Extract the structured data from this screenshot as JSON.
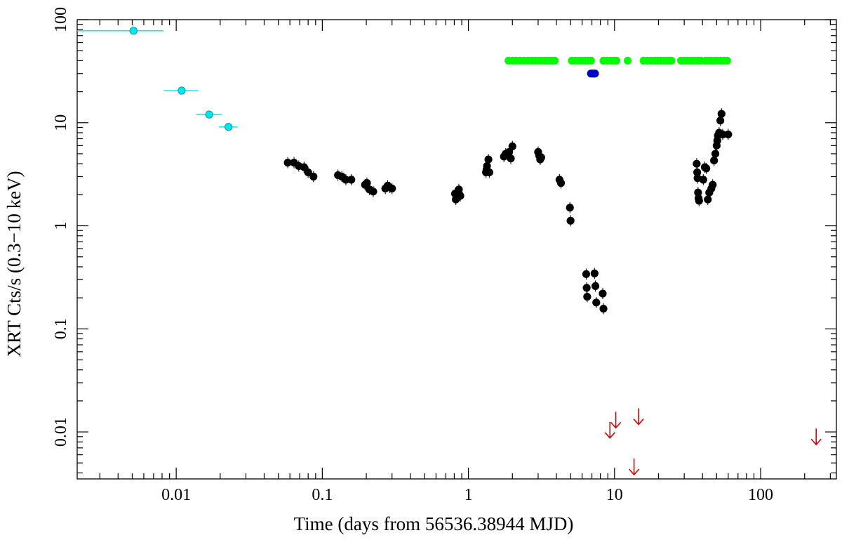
{
  "chart_data": {
    "type": "scatter",
    "xlabel": "Time (days from 56536.38944 MJD)",
    "ylabel": "XRT Cts/s (0.3−10 keV)",
    "x_scale": "log",
    "y_scale": "log",
    "xlim": [
      0.0021,
      330
    ],
    "ylim": [
      0.0035,
      100
    ],
    "x_ticks": [
      {
        "value": 0.01,
        "label": "0.01"
      },
      {
        "value": 0.1,
        "label": "0.1"
      },
      {
        "value": 1,
        "label": "1"
      },
      {
        "value": 10,
        "label": "10"
      },
      {
        "value": 100,
        "label": "100"
      }
    ],
    "y_ticks": [
      {
        "value": 0.01,
        "label": "0.01"
      },
      {
        "value": 0.1,
        "label": "0.1"
      },
      {
        "value": 1,
        "label": "1"
      },
      {
        "value": 10,
        "label": "10"
      },
      {
        "value": 100,
        "label": "100"
      }
    ],
    "grid": false,
    "colors": {
      "early": "#00e5ee",
      "main": "#000000",
      "green_band": "#00ff00",
      "blue_band": "#0000cc",
      "upper_limits": "#dd0000"
    },
    "series": [
      {
        "marker": "circle",
        "color": "#00e5ee",
        "points": [
          {
            "x": 0.0051,
            "y": 78,
            "xerr": [
              0.0021,
              0.0082
            ]
          },
          {
            "x": 0.0109,
            "y": 20.5,
            "xerr": [
              0.0082,
              0.0142
            ]
          },
          {
            "x": 0.0168,
            "y": 12.0,
            "xerr": [
              0.0137,
              0.0206
            ]
          },
          {
            "x": 0.0228,
            "y": 9.1,
            "xerr": [
              0.0196,
              0.0263
            ]
          }
        ]
      },
      {
        "marker": "circle",
        "color": "#000000",
        "points": [
          {
            "x": 0.058,
            "y": 4.1
          },
          {
            "x": 0.064,
            "y": 4.1
          },
          {
            "x": 0.069,
            "y": 3.8
          },
          {
            "x": 0.075,
            "y": 3.7
          },
          {
            "x": 0.08,
            "y": 3.3
          },
          {
            "x": 0.087,
            "y": 3.0
          },
          {
            "x": 0.128,
            "y": 3.1
          },
          {
            "x": 0.136,
            "y": 3.0
          },
          {
            "x": 0.145,
            "y": 2.8
          },
          {
            "x": 0.158,
            "y": 2.8
          },
          {
            "x": 0.196,
            "y": 2.5
          },
          {
            "x": 0.202,
            "y": 2.6
          },
          {
            "x": 0.21,
            "y": 2.25
          },
          {
            "x": 0.223,
            "y": 2.15
          },
          {
            "x": 0.27,
            "y": 2.3
          },
          {
            "x": 0.28,
            "y": 2.45
          },
          {
            "x": 0.29,
            "y": 2.35
          },
          {
            "x": 0.3,
            "y": 2.3
          },
          {
            "x": 0.81,
            "y": 2.05
          },
          {
            "x": 0.82,
            "y": 1.8
          },
          {
            "x": 0.86,
            "y": 2.25
          },
          {
            "x": 0.87,
            "y": 2.0
          },
          {
            "x": 0.88,
            "y": 1.95
          },
          {
            "x": 1.32,
            "y": 3.3
          },
          {
            "x": 1.33,
            "y": 3.5
          },
          {
            "x": 1.34,
            "y": 3.8
          },
          {
            "x": 1.37,
            "y": 4.4
          },
          {
            "x": 1.39,
            "y": 3.3
          },
          {
            "x": 1.75,
            "y": 4.7
          },
          {
            "x": 1.8,
            "y": 5.0
          },
          {
            "x": 1.85,
            "y": 4.9
          },
          {
            "x": 1.9,
            "y": 5.2
          },
          {
            "x": 1.95,
            "y": 4.5
          },
          {
            "x": 2.0,
            "y": 5.9
          },
          {
            "x": 3.0,
            "y": 5.2
          },
          {
            "x": 3.05,
            "y": 4.8
          },
          {
            "x": 3.1,
            "y": 4.4
          },
          {
            "x": 3.15,
            "y": 4.6
          },
          {
            "x": 4.2,
            "y": 2.8
          },
          {
            "x": 4.3,
            "y": 2.6
          },
          {
            "x": 4.95,
            "y": 1.5
          },
          {
            "x": 5.0,
            "y": 1.12
          },
          {
            "x": 6.4,
            "y": 0.34
          },
          {
            "x": 6.45,
            "y": 0.25
          },
          {
            "x": 6.5,
            "y": 0.205
          },
          {
            "x": 7.3,
            "y": 0.345
          },
          {
            "x": 7.4,
            "y": 0.26
          },
          {
            "x": 7.5,
            "y": 0.18
          },
          {
            "x": 8.3,
            "y": 0.22
          },
          {
            "x": 8.4,
            "y": 0.157
          },
          {
            "x": 36.5,
            "y": 4.0
          },
          {
            "x": 36.8,
            "y": 3.3
          },
          {
            "x": 37,
            "y": 2.9
          },
          {
            "x": 37.3,
            "y": 2.1
          },
          {
            "x": 37.6,
            "y": 1.85
          },
          {
            "x": 37.9,
            "y": 1.75
          },
          {
            "x": 40.5,
            "y": 2.8
          },
          {
            "x": 41.5,
            "y": 3.7
          },
          {
            "x": 42.5,
            "y": 3.6
          },
          {
            "x": 43.5,
            "y": 1.8
          },
          {
            "x": 44.5,
            "y": 2.1
          },
          {
            "x": 46,
            "y": 2.3
          },
          {
            "x": 47,
            "y": 2.5
          },
          {
            "x": 48,
            "y": 4.3
          },
          {
            "x": 49,
            "y": 5.0
          },
          {
            "x": 50,
            "y": 6.0
          },
          {
            "x": 50.5,
            "y": 6.7
          },
          {
            "x": 51,
            "y": 7.5
          },
          {
            "x": 52,
            "y": 8.0
          },
          {
            "x": 53,
            "y": 10.5
          },
          {
            "x": 54,
            "y": 12.2
          },
          {
            "x": 55,
            "y": 7.7
          },
          {
            "x": 60,
            "y": 7.7
          }
        ]
      },
      {
        "marker": "circle",
        "color": "#00ff00",
        "points": [
          {
            "x": 1.88,
            "y": 40
          },
          {
            "x": 2.0,
            "y": 40
          },
          {
            "x": 2.12,
            "y": 40
          },
          {
            "x": 2.25,
            "y": 40
          },
          {
            "x": 2.4,
            "y": 40
          },
          {
            "x": 2.55,
            "y": 40
          },
          {
            "x": 2.7,
            "y": 40
          },
          {
            "x": 2.85,
            "y": 40
          },
          {
            "x": 3.0,
            "y": 40
          },
          {
            "x": 3.15,
            "y": 40
          },
          {
            "x": 3.3,
            "y": 40
          },
          {
            "x": 3.45,
            "y": 40
          },
          {
            "x": 3.6,
            "y": 40
          },
          {
            "x": 3.75,
            "y": 40
          },
          {
            "x": 3.9,
            "y": 40
          },
          {
            "x": 5.1,
            "y": 40
          },
          {
            "x": 5.4,
            "y": 40
          },
          {
            "x": 5.7,
            "y": 40
          },
          {
            "x": 6.0,
            "y": 40
          },
          {
            "x": 6.3,
            "y": 40
          },
          {
            "x": 6.6,
            "y": 40
          },
          {
            "x": 6.9,
            "y": 40
          },
          {
            "x": 8.4,
            "y": 40
          },
          {
            "x": 8.9,
            "y": 40
          },
          {
            "x": 9.4,
            "y": 40
          },
          {
            "x": 9.9,
            "y": 40
          },
          {
            "x": 10.3,
            "y": 40
          },
          {
            "x": 12.3,
            "y": 40
          },
          {
            "x": 15.8,
            "y": 40
          },
          {
            "x": 16.8,
            "y": 40
          },
          {
            "x": 17.8,
            "y": 40
          },
          {
            "x": 18.8,
            "y": 40
          },
          {
            "x": 19.8,
            "y": 40
          },
          {
            "x": 20.8,
            "y": 40
          },
          {
            "x": 21.8,
            "y": 40
          },
          {
            "x": 22.8,
            "y": 40
          },
          {
            "x": 23.8,
            "y": 40
          },
          {
            "x": 24.5,
            "y": 40
          },
          {
            "x": 28.5,
            "y": 40
          },
          {
            "x": 30,
            "y": 40
          },
          {
            "x": 31.5,
            "y": 40
          },
          {
            "x": 33,
            "y": 40
          },
          {
            "x": 34.5,
            "y": 40
          },
          {
            "x": 36,
            "y": 40
          },
          {
            "x": 37.5,
            "y": 40
          },
          {
            "x": 39,
            "y": 40
          },
          {
            "x": 42,
            "y": 40
          },
          {
            "x": 44,
            "y": 40
          },
          {
            "x": 46,
            "y": 40
          },
          {
            "x": 48,
            "y": 40
          },
          {
            "x": 50,
            "y": 40
          },
          {
            "x": 53,
            "y": 40
          },
          {
            "x": 56,
            "y": 40
          },
          {
            "x": 59,
            "y": 40
          }
        ]
      },
      {
        "marker": "circle",
        "color": "#0000cc",
        "points": [
          {
            "x": 6.9,
            "y": 30
          },
          {
            "x": 7.05,
            "y": 30
          },
          {
            "x": 7.2,
            "y": 30
          },
          {
            "x": 7.35,
            "y": 30
          }
        ]
      },
      {
        "marker": "arrow-down",
        "color": "#dd0000",
        "points": [
          {
            "x": 9.3,
            "y": 0.0102
          },
          {
            "x": 10.2,
            "y": 0.0128
          },
          {
            "x": 13.6,
            "y": 0.0045
          },
          {
            "x": 14.6,
            "y": 0.0138
          },
          {
            "x": 240,
            "y": 0.0088
          }
        ]
      }
    ]
  }
}
